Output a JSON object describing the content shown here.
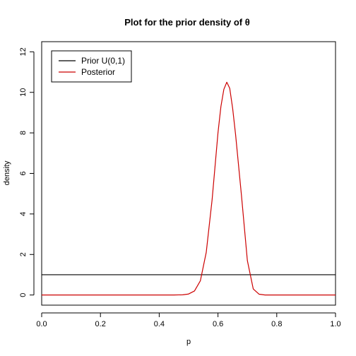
{
  "chart_data": {
    "type": "line",
    "title": "Plot for the prior density of θ",
    "xlabel": "p",
    "ylabel": "density",
    "xlim": [
      0,
      1
    ],
    "ylim": [
      -0.5,
      12.5
    ],
    "xticks": [
      0.0,
      0.2,
      0.4,
      0.6,
      0.8,
      1.0
    ],
    "xtick_labels": [
      "0.0",
      "0.2",
      "0.4",
      "0.6",
      "0.8",
      "1.0"
    ],
    "yticks": [
      0,
      2,
      4,
      6,
      8,
      10,
      12
    ],
    "ytick_labels": [
      "0",
      "2",
      "4",
      "6",
      "8",
      "10",
      "12"
    ],
    "grid": false,
    "legend_position": "top-left",
    "series": [
      {
        "name": "Prior U(0,1)",
        "color": "#000000",
        "x": [
          0.0,
          1.0
        ],
        "y": [
          1.0,
          1.0
        ]
      },
      {
        "name": "Posterior",
        "color": "#cc0000",
        "x": [
          0.0,
          0.1,
          0.2,
          0.3,
          0.4,
          0.45,
          0.48,
          0.5,
          0.52,
          0.54,
          0.56,
          0.58,
          0.6,
          0.61,
          0.62,
          0.63,
          0.64,
          0.65,
          0.66,
          0.68,
          0.7,
          0.72,
          0.74,
          0.76,
          0.78,
          0.8,
          0.9,
          1.0
        ],
        "y": [
          0.0,
          0.0,
          0.0,
          0.0,
          0.0,
          0.0,
          0.01,
          0.05,
          0.2,
          0.7,
          2.1,
          4.7,
          8.0,
          9.3,
          10.15,
          10.5,
          10.2,
          9.2,
          7.9,
          4.9,
          1.7,
          0.3,
          0.04,
          0.0,
          0.0,
          0.0,
          0.0,
          0.0
        ]
      }
    ]
  }
}
